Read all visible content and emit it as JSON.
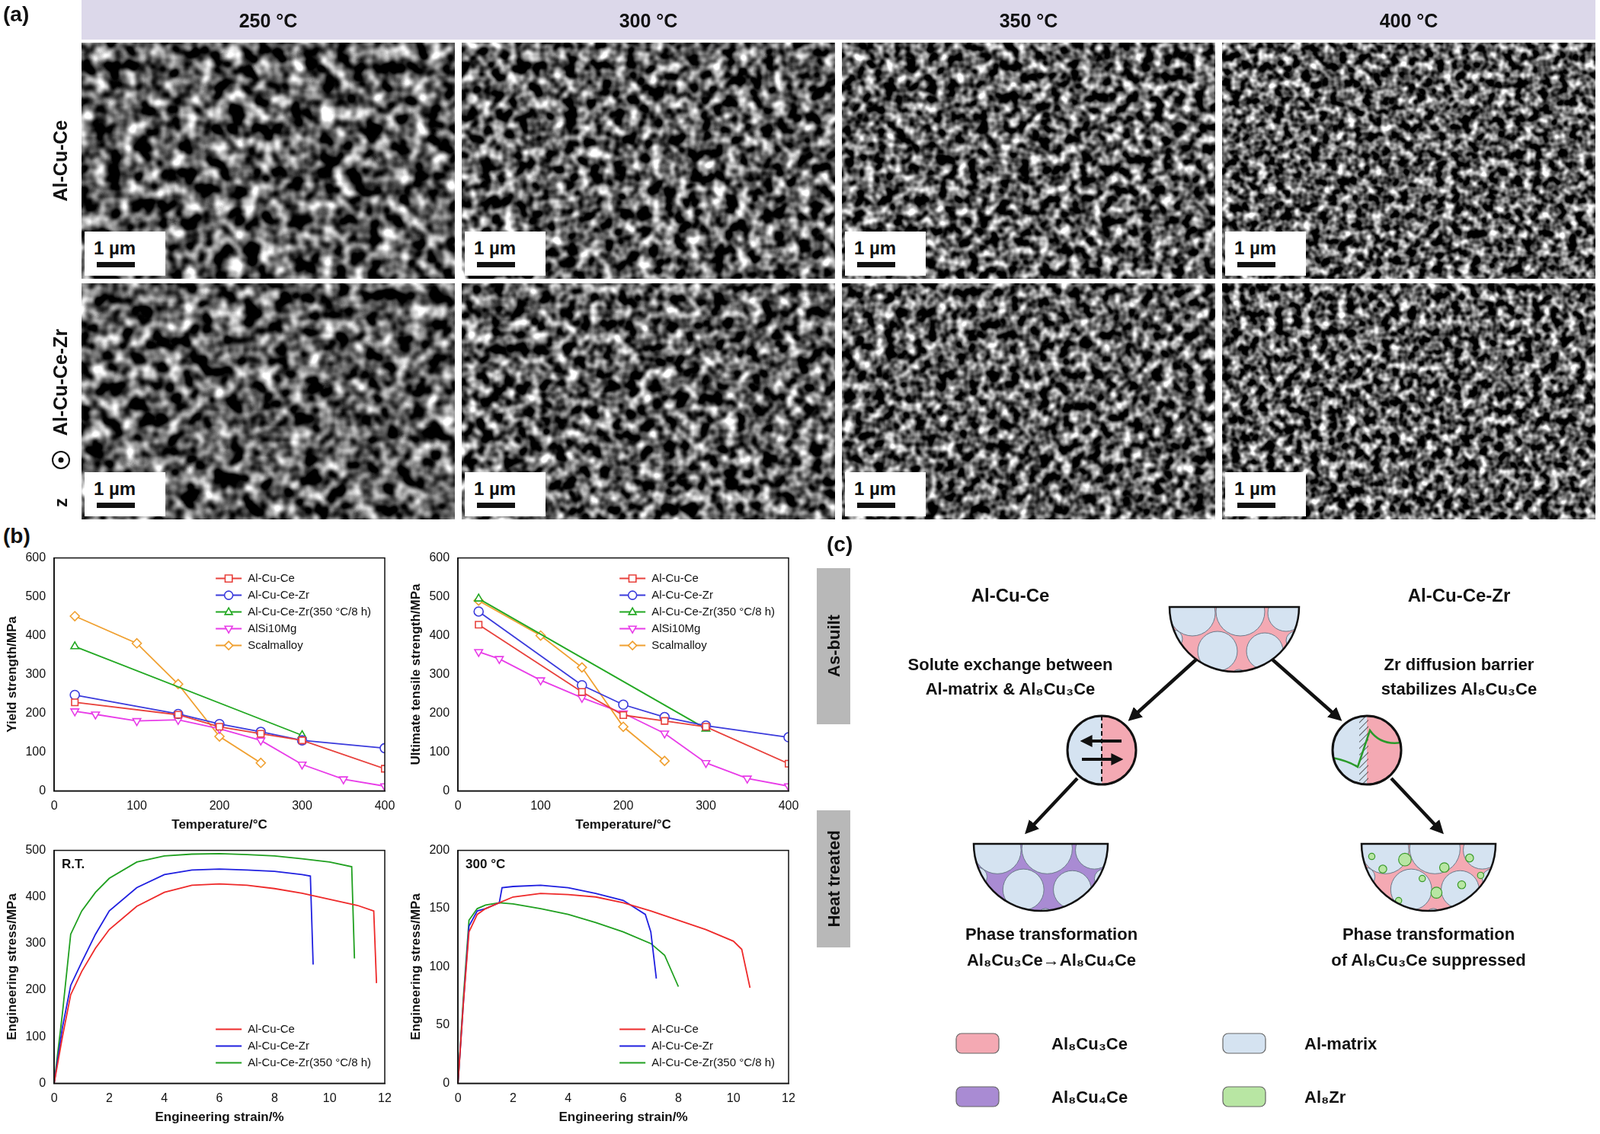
{
  "figure": {
    "panel_a": {
      "label": "(a)",
      "columns": [
        "250 °C",
        "300 °C",
        "350 °C",
        "400 °C"
      ],
      "rows": [
        "Al-Cu-Ce",
        "Al-Cu-Ce-Zr"
      ],
      "scale_bar": "1 µm",
      "direction": "z"
    },
    "panel_b": {
      "label": "(b)"
    },
    "panel_c": {
      "label": "(c)",
      "stages": [
        "As-built",
        "Heat treated"
      ],
      "alloys": [
        "Al-Cu-Ce",
        "Al-Cu-Ce-Zr"
      ],
      "mechanisms": [
        [
          "Solute exchange between",
          "Al-matrix & Al₈Cu₃Ce"
        ],
        [
          "Zr diffusion barrier",
          "stabilizes Al₈Cu₃Ce"
        ]
      ],
      "outcomes": [
        [
          "Phase transformation",
          "Al₈Cu₃Ce→Al₈Cu₄Ce"
        ],
        [
          "Phase transformation",
          "of Al₈Cu₃Ce suppressed"
        ]
      ],
      "legend": [
        {
          "name": "Al₈Cu₃Ce",
          "color": "#f4a9b3"
        },
        {
          "name": "Al-matrix",
          "color": "#d5e3f1"
        },
        {
          "name": "Al₈Cu₄Ce",
          "color": "#a98bd3"
        },
        {
          "name": "Al₈Zr",
          "color": "#b8e6a3"
        }
      ]
    }
  },
  "chart_data": [
    {
      "type": "line",
      "x_label": "Temperature/°C",
      "y_label": "Yield strength/MPa",
      "xlim": [
        0,
        400
      ],
      "xticks": [
        0,
        100,
        200,
        300,
        400
      ],
      "ylim": [
        0,
        600
      ],
      "yticks": [
        0,
        100,
        200,
        300,
        400,
        500,
        600
      ],
      "grid": false,
      "legend": "upper right",
      "series": [
        {
          "name": "Al-Cu-Ce",
          "color": "#e8413c",
          "marker": "square",
          "line_style": "solid",
          "x": [
            25,
            150,
            200,
            250,
            300,
            400
          ],
          "values": [
            228,
            196,
            165,
            147,
            130,
            57
          ]
        },
        {
          "name": "Al-Cu-Ce-Zr",
          "color": "#3b3bdc",
          "marker": "circle",
          "line_style": "solid",
          "x": [
            25,
            150,
            200,
            250,
            300,
            400
          ],
          "values": [
            247,
            198,
            172,
            152,
            130,
            110
          ]
        },
        {
          "name": "Al-Cu-Ce-Zr(350 °C/8 h)",
          "color": "#22a822",
          "marker": "triangle",
          "line_style": "solid",
          "x": [
            25,
            300
          ],
          "values": [
            372,
            143
          ]
        },
        {
          "name": "AlSi10Mg",
          "color": "#e83ce8",
          "marker": "triangle_down",
          "line_style": "solid",
          "x": [
            25,
            50,
            100,
            150,
            200,
            250,
            300,
            350,
            400
          ],
          "values": [
            205,
            197,
            180,
            183,
            160,
            130,
            68,
            30,
            12
          ]
        },
        {
          "name": "Scalmalloy",
          "color": "#f0a030",
          "marker": "diamond",
          "line_style": "solid",
          "x": [
            25,
            100,
            150,
            200,
            250
          ],
          "values": [
            450,
            380,
            275,
            140,
            72
          ]
        }
      ]
    },
    {
      "type": "line",
      "x_label": "Temperature/°C",
      "y_label": "Ultimate tensile strength/MPa",
      "xlim": [
        0,
        400
      ],
      "xticks": [
        0,
        100,
        200,
        300,
        400
      ],
      "ylim": [
        0,
        600
      ],
      "yticks": [
        0,
        100,
        200,
        300,
        400,
        500,
        600
      ],
      "grid": false,
      "legend": "upper right",
      "series": [
        {
          "name": "Al-Cu-Ce",
          "color": "#e8413c",
          "marker": "square",
          "line_style": "solid",
          "x": [
            25,
            150,
            200,
            250,
            300,
            400
          ],
          "values": [
            428,
            255,
            195,
            180,
            165,
            70
          ]
        },
        {
          "name": "Al-Cu-Ce-Zr",
          "color": "#3b3bdc",
          "marker": "circle",
          "line_style": "solid",
          "x": [
            25,
            150,
            200,
            250,
            300,
            400
          ],
          "values": [
            462,
            272,
            222,
            190,
            168,
            138
          ]
        },
        {
          "name": "Al-Cu-Ce-Zr(350 °C/8 h)",
          "color": "#22a822",
          "marker": "triangle",
          "line_style": "solid",
          "x": [
            25,
            300
          ],
          "values": [
            495,
            160
          ]
        },
        {
          "name": "AlSi10Mg",
          "color": "#e83ce8",
          "marker": "triangle_down",
          "line_style": "solid",
          "x": [
            25,
            50,
            100,
            150,
            200,
            250,
            300,
            350,
            400
          ],
          "values": [
            358,
            340,
            285,
            240,
            200,
            148,
            72,
            32,
            12
          ]
        },
        {
          "name": "Scalmalloy",
          "color": "#f0a030",
          "marker": "diamond",
          "line_style": "solid",
          "x": [
            25,
            100,
            150,
            200,
            250
          ],
          "values": [
            490,
            400,
            318,
            165,
            77
          ]
        }
      ]
    },
    {
      "type": "line",
      "annotation": "R.T.",
      "x_label": "Engineering strain/%",
      "y_label": "Engineering stress/MPa",
      "xlim": [
        0,
        12
      ],
      "xticks": [
        0,
        2,
        4,
        6,
        8,
        10,
        12
      ],
      "ylim": [
        0,
        500
      ],
      "yticks": [
        0,
        100,
        200,
        300,
        400,
        500
      ],
      "grid": false,
      "legend": "lower right",
      "series": [
        {
          "name": "Al-Cu-Ce",
          "color": "#ee2a2a",
          "marker": "none",
          "line_style": "solid",
          "x": [
            0,
            0.3,
            0.6,
            1,
            1.5,
            2,
            3,
            4,
            5,
            6,
            7,
            8,
            9,
            10,
            11,
            11.6,
            11.7
          ],
          "values": [
            0,
            100,
            190,
            240,
            290,
            330,
            380,
            410,
            425,
            428,
            425,
            418,
            408,
            395,
            382,
            370,
            215
          ]
        },
        {
          "name": "Al-Cu-Ce-Zr",
          "color": "#2020e0",
          "marker": "none",
          "line_style": "solid",
          "x": [
            0,
            0.3,
            0.6,
            1,
            1.5,
            2,
            3,
            4,
            5,
            6,
            7,
            8,
            9,
            9.3,
            9.4
          ],
          "values": [
            0,
            120,
            210,
            260,
            320,
            370,
            420,
            448,
            458,
            460,
            458,
            455,
            448,
            445,
            255
          ]
        },
        {
          "name": "Al-Cu-Ce-Zr(350 °C/8 h)",
          "color": "#20a020",
          "marker": "none",
          "line_style": "solid",
          "x": [
            0,
            0.3,
            0.6,
            1,
            1.5,
            2,
            3,
            4,
            5,
            6,
            7,
            8,
            9,
            10,
            10.8,
            10.9
          ],
          "values": [
            0,
            150,
            320,
            370,
            410,
            440,
            475,
            488,
            492,
            493,
            491,
            488,
            482,
            475,
            465,
            268
          ]
        }
      ]
    },
    {
      "type": "line",
      "annotation": "300 °C",
      "x_label": "Engineering strain/%",
      "y_label": "Engineering stress/MPa",
      "xlim": [
        0,
        12
      ],
      "xticks": [
        0,
        2,
        4,
        6,
        8,
        10,
        12
      ],
      "ylim": [
        0,
        200
      ],
      "yticks": [
        0,
        50,
        100,
        150,
        200
      ],
      "grid": false,
      "legend": "lower right",
      "series": [
        {
          "name": "Al-Cu-Ce",
          "color": "#ee2a2a",
          "marker": "none",
          "line_style": "solid",
          "x": [
            0,
            0.2,
            0.4,
            0.7,
            1,
            1.5,
            2,
            3,
            4,
            5,
            6,
            7,
            8,
            9,
            10,
            10.3,
            10.6
          ],
          "values": [
            0,
            70,
            130,
            145,
            150,
            155,
            160,
            163,
            162,
            160,
            155,
            148,
            140,
            132,
            122,
            115,
            82
          ]
        },
        {
          "name": "Al-Cu-Ce-Zr",
          "color": "#2020e0",
          "marker": "none",
          "line_style": "solid",
          "x": [
            0,
            0.2,
            0.4,
            0.7,
            1,
            1.5,
            1.6,
            2,
            3,
            4,
            5,
            6,
            6.8,
            7,
            7.2
          ],
          "values": [
            0,
            70,
            135,
            148,
            150,
            155,
            168,
            169,
            170,
            168,
            163,
            157,
            145,
            130,
            90
          ]
        },
        {
          "name": "Al-Cu-Ce-Zr(350 °C/8 h)",
          "color": "#20a020",
          "marker": "none",
          "line_style": "solid",
          "x": [
            0,
            0.2,
            0.4,
            0.7,
            1,
            1.5,
            2,
            3,
            4,
            5,
            6,
            7,
            7.5,
            8
          ],
          "values": [
            0,
            75,
            140,
            150,
            153,
            155,
            154,
            150,
            145,
            138,
            130,
            120,
            110,
            83
          ]
        }
      ]
    }
  ]
}
